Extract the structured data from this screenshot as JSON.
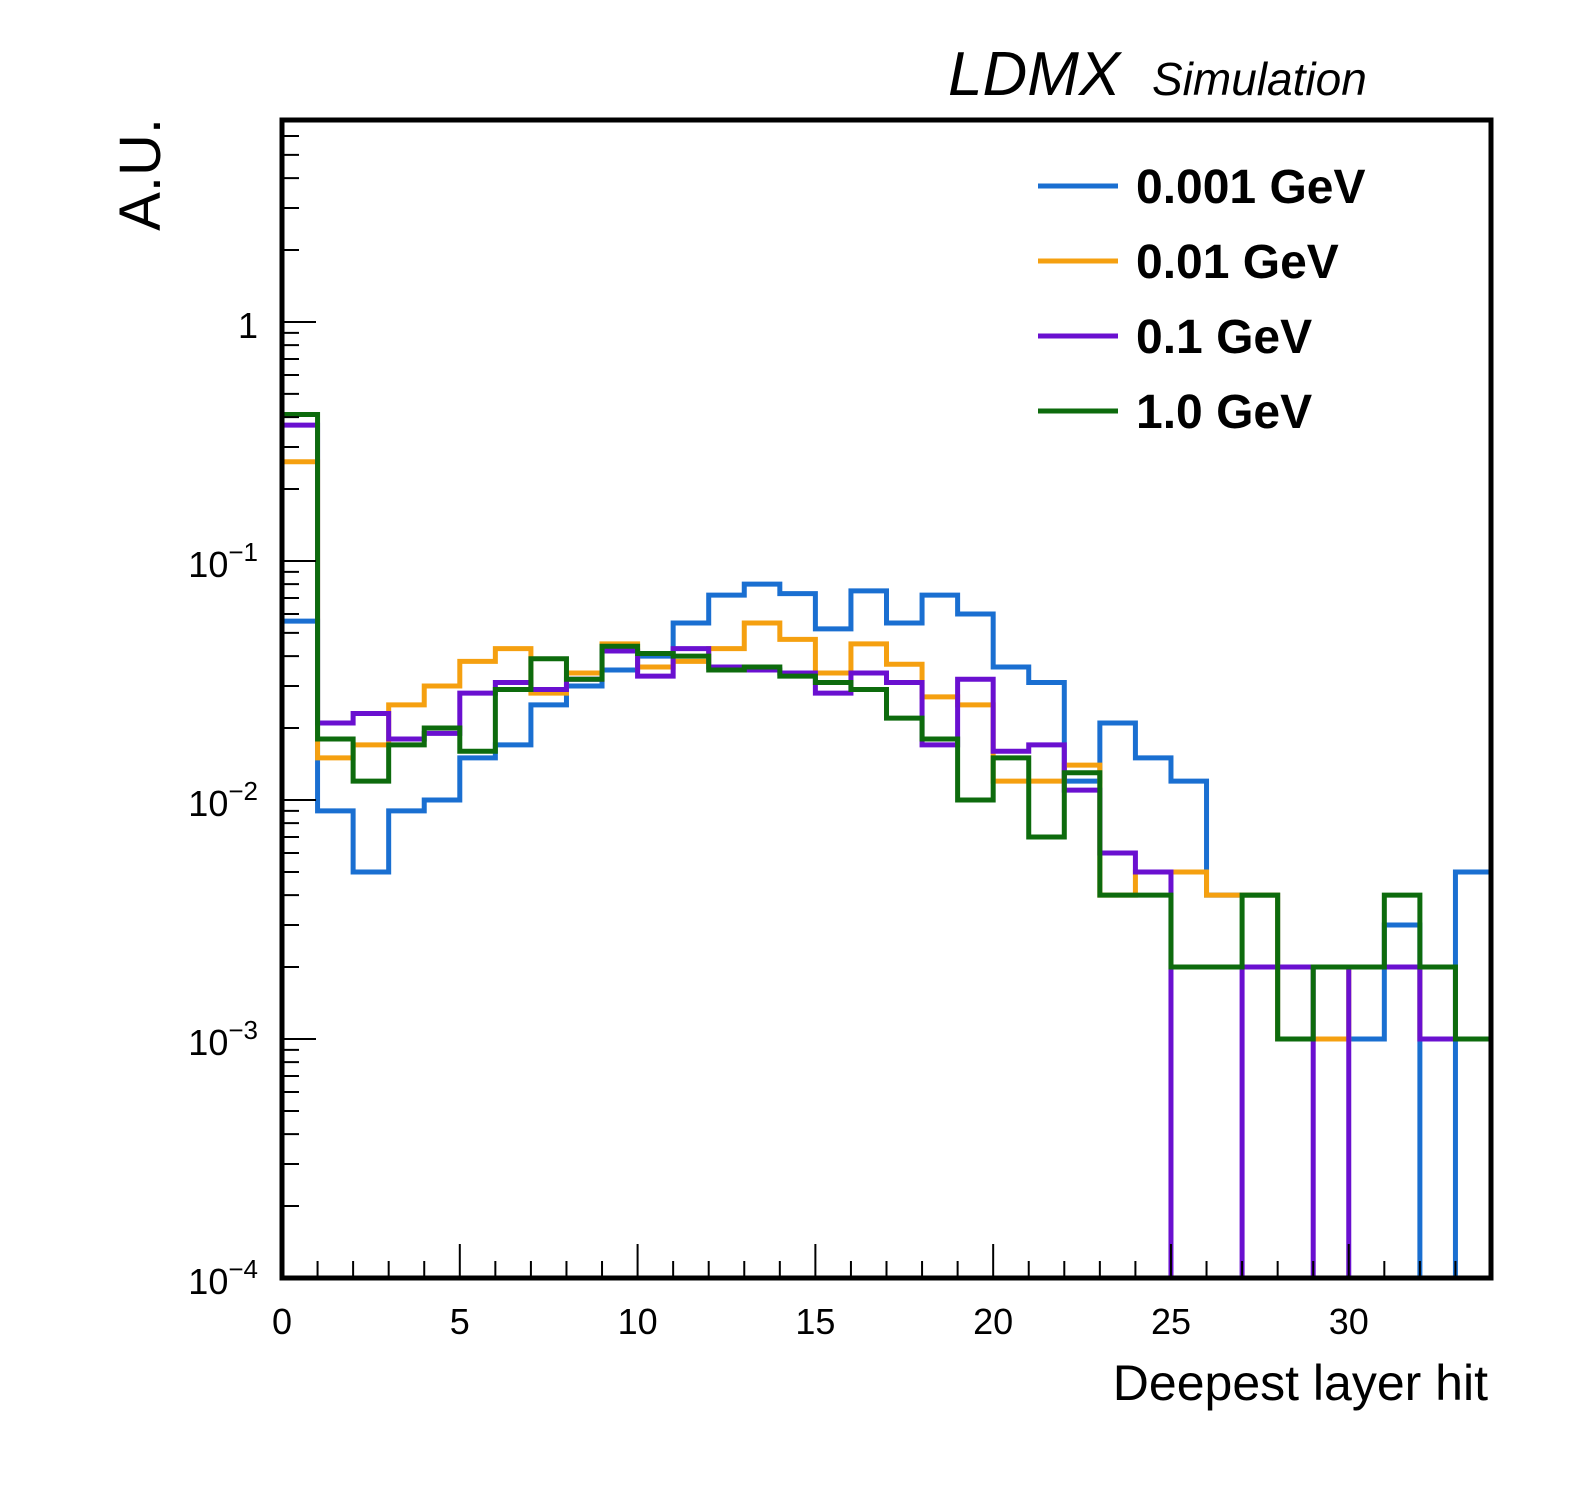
{
  "header": {
    "experiment": "LDMX",
    "subtitle": "Simulation"
  },
  "chart_data": {
    "type": "line",
    "drawstyle": "step-histogram",
    "xlabel": "Deepest layer hit",
    "ylabel": "A.U.",
    "xlim": [
      0,
      34
    ],
    "ylim": [
      0.0001,
      7
    ],
    "yscale": "log",
    "grid": false,
    "legend_position": "top-right",
    "x_ticks": [
      0,
      5,
      10,
      15,
      20,
      25,
      30
    ],
    "y_ticks": [
      {
        "value": 0.0001,
        "base": "10",
        "exp": "−4"
      },
      {
        "value": 0.001,
        "base": "10",
        "exp": "−3"
      },
      {
        "value": 0.01,
        "base": "10",
        "exp": "−2"
      },
      {
        "value": 0.1,
        "base": "10",
        "exp": "−1"
      },
      {
        "value": 1,
        "base": "1",
        "exp": ""
      }
    ],
    "bin_edges": [
      0,
      1,
      2,
      3,
      4,
      5,
      6,
      7,
      8,
      9,
      10,
      11,
      12,
      13,
      14,
      15,
      16,
      17,
      18,
      19,
      20,
      21,
      22,
      23,
      24,
      25,
      26,
      27,
      28,
      29,
      30,
      31,
      32,
      33,
      34
    ],
    "series": [
      {
        "name": "0.001 GeV",
        "color": "#1a6fd1",
        "values": [
          0.056,
          0.009,
          0.005,
          0.009,
          0.01,
          0.015,
          0.017,
          0.025,
          0.03,
          0.035,
          0.04,
          0.055,
          0.072,
          0.08,
          0.073,
          0.052,
          0.075,
          0.055,
          0.072,
          0.06,
          0.036,
          0.031,
          0.012,
          0.021,
          0.015,
          0.012,
          0.004,
          0.004,
          0.001,
          0.001,
          0.001,
          0.003,
          0.0001,
          0.005
        ]
      },
      {
        "name": "0.01 GeV",
        "color": "#f5a010",
        "values": [
          0.26,
          0.015,
          0.017,
          0.025,
          0.03,
          0.038,
          0.043,
          0.028,
          0.034,
          0.045,
          0.036,
          0.038,
          0.043,
          0.055,
          0.047,
          0.034,
          0.045,
          0.037,
          0.027,
          0.025,
          0.012,
          0.012,
          0.014,
          0.004,
          0.005,
          0.005,
          0.004,
          0.004,
          0.001,
          0.001,
          0.002,
          0.002,
          0.001,
          0.001
        ]
      },
      {
        "name": "0.1 GeV",
        "color": "#6a10d0",
        "values": [
          0.37,
          0.021,
          0.023,
          0.018,
          0.019,
          0.028,
          0.031,
          0.029,
          0.032,
          0.042,
          0.033,
          0.043,
          0.036,
          0.035,
          0.034,
          0.028,
          0.034,
          0.031,
          0.017,
          0.032,
          0.016,
          0.017,
          0.011,
          0.006,
          0.005,
          0.0001,
          0.0001,
          0.002,
          0.002,
          0.0001,
          0.002,
          0.002,
          0.001,
          0.001
        ]
      },
      {
        "name": "1.0 GeV",
        "color": "#0d6b0d",
        "values": [
          0.41,
          0.018,
          0.012,
          0.017,
          0.02,
          0.016,
          0.029,
          0.039,
          0.032,
          0.044,
          0.041,
          0.04,
          0.035,
          0.036,
          0.033,
          0.031,
          0.029,
          0.022,
          0.018,
          0.01,
          0.015,
          0.007,
          0.013,
          0.004,
          0.004,
          0.002,
          0.002,
          0.004,
          0.001,
          0.002,
          0.002,
          0.004,
          0.002,
          0.001
        ]
      }
    ]
  }
}
